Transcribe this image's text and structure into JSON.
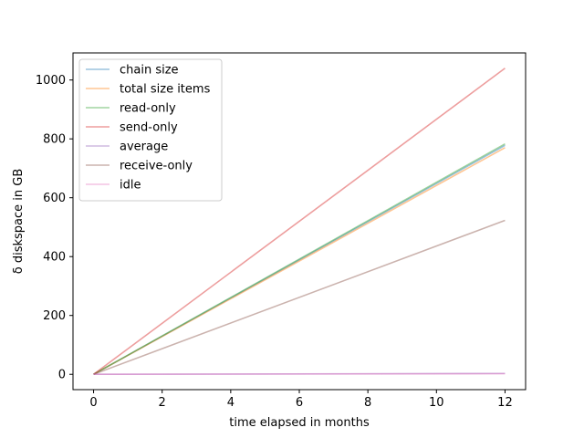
{
  "chart_data": {
    "type": "line",
    "xlabel": "time elapsed in months",
    "ylabel": "δ diskspace in GB",
    "xlim": [
      -0.6,
      12.6
    ],
    "ylim": [
      -52,
      1092
    ],
    "xticks": [
      0,
      2,
      4,
      6,
      8,
      10,
      12
    ],
    "yticks": [
      0,
      200,
      400,
      600,
      800,
      1000
    ],
    "grid": false,
    "legend_position": "upper-left",
    "series": [
      {
        "name": "chain size",
        "color": "#1f77b4",
        "x": [
          0,
          12
        ],
        "y": [
          0,
          778
        ]
      },
      {
        "name": "total size items",
        "color": "#ff7f0e",
        "x": [
          0,
          12
        ],
        "y": [
          0,
          770
        ]
      },
      {
        "name": "read-only",
        "color": "#2ca02c",
        "x": [
          0,
          12
        ],
        "y": [
          0,
          783
        ]
      },
      {
        "name": "send-only",
        "color": "#d62728",
        "x": [
          0,
          12
        ],
        "y": [
          0,
          1040
        ]
      },
      {
        "name": "average",
        "color": "#9467bd",
        "x": [
          0,
          12
        ],
        "y": [
          0,
          3
        ]
      },
      {
        "name": "receive-only",
        "color": "#8c564b",
        "x": [
          0,
          12
        ],
        "y": [
          0,
          523
        ]
      },
      {
        "name": "idle",
        "color": "#e377c2",
        "x": [
          0,
          12
        ],
        "y": [
          0,
          2
        ]
      }
    ]
  }
}
